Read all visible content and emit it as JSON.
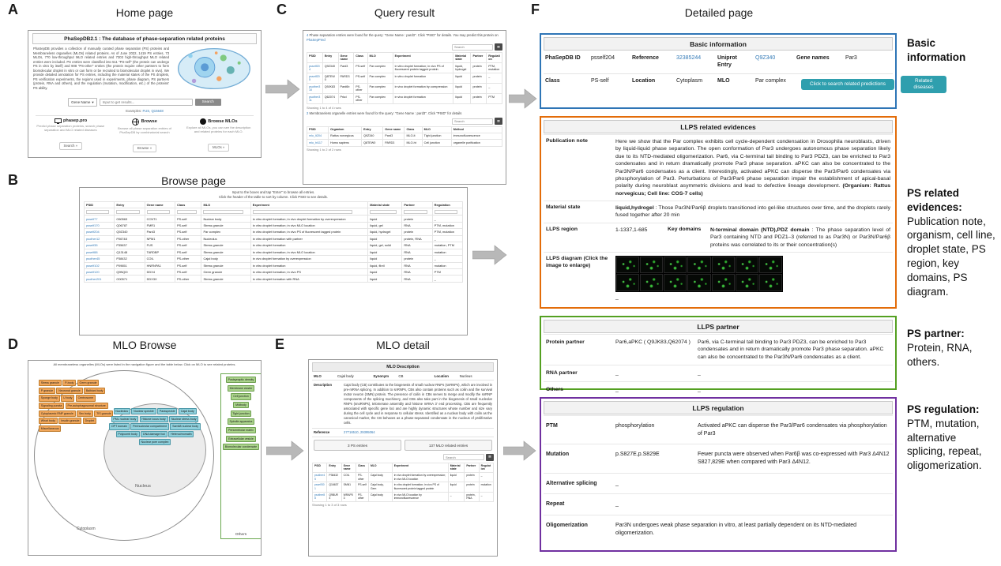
{
  "colors": {
    "accent_blue": "#2e75b6",
    "accent_orange": "#e36c09",
    "accent_green": "#54a021",
    "accent_purple": "#7030a0",
    "link": "#337ab7",
    "teal_button": "#2f9fae"
  },
  "panels": {
    "A": {
      "letter": "A",
      "title": "Home page"
    },
    "B": {
      "letter": "B",
      "title": "Browse page"
    },
    "C": {
      "letter": "C",
      "title": "Query result"
    },
    "D": {
      "letter": "D",
      "title": "MLO Browse"
    },
    "E": {
      "letter": "E",
      "title": "MLO detail"
    },
    "F": {
      "letter": "F",
      "title": "Detailed page"
    }
  },
  "home": {
    "site_title": "PhaSepDB2.1 : The database of phase-separation related proteins",
    "description": "PhaSepDB provides a collection of manually curated phase separation (PS) proteins and Membraneless organelles (MLOs) related proteins. As of June 2022, 1419 PS entries, 73 MLOs, 770 low-throughput MLO related entries and 7303 high-throughput MLO related entries were included. PS entries were classified into 511 \"PS-self\" (the protein can undergo PS in vitro by itself) and 908 \"PS-other\" entries (the protein require other partners to form biomolecular droplet in vitro or can form or be recruited to biomolecular droplet in vivo). We provide detailed annotation for PS entries, including the material states of the PS droplets, PS verification experiments, the regions used in experiments, phase diagram, PS partners (protein, RNA and others), and the regulation (mutation, modification, etc.) of the proteins' PS ability.",
    "search_category": "Gene Name",
    "search_placeholder": "Input to get results...",
    "search_button": "Search",
    "examples_label": "Examples:",
    "examples_links": "FUS, Q15648",
    "cards": [
      {
        "title": "phasep.pro",
        "desc": "Predict phase separation proteins, search phase separation and MLO related diseases",
        "button": "Search »"
      },
      {
        "title": "Browse",
        "desc": "Browse all phase separation entries of PhaSepDB by combinatorial search",
        "button": "Browse »"
      },
      {
        "title": "Browse MLOs",
        "desc": "Explore all MLOs, you can see the description and related proteins for each MLO.",
        "button": "MLOs »"
      }
    ]
  },
  "browse": {
    "instruction1": "Input to the boxes and tap \"Enter\" to browse all entries.",
    "instruction2": "Click the header of the table to sort by column. Click PSID to see details.",
    "columns": [
      "PSID",
      "Entry",
      "Gene name",
      "Class",
      "MLO",
      "Experiment",
      "Material state",
      "Partner",
      "Regulation"
    ],
    "rows": [
      [
        "psself77",
        "O60563",
        "CCNT1",
        "PS-self",
        "Nuclear body",
        "in vitro droplet formation; in vivo droplet formation by overexpression",
        "liquid",
        "protein",
        "_"
      ],
      [
        "psself170",
        "Q06787",
        "FMR1",
        "PS-self",
        "Stress granule",
        "in vitro droplet formation; in vivo MLO location",
        "liquid, gel",
        "RNA",
        "PTM, mutation"
      ],
      [
        "psself204",
        "Q9Z340",
        "Pard3",
        "PS-self",
        "Par complex",
        "in vitro droplet formation; in vivo PS of fluorescent tagged protein",
        "liquid, hydrogel",
        "protein",
        "PTM, mutation"
      ],
      [
        "psother12",
        "P06748",
        "NPM1",
        "PS-other",
        "Nucleolus",
        "in vitro droplet formation with partner",
        "liquid",
        "protein, RNA",
        "_"
      ],
      [
        "psself35",
        "P35637",
        "FUS",
        "PS-self",
        "Stress granule",
        "in vitro droplet formation",
        "liquid, gel, solid",
        "RNA",
        "mutation, PTM"
      ],
      [
        "psself88",
        "Q13148",
        "TARDBP",
        "PS-self",
        "Stress granule",
        "in vitro droplet formation; in vivo MLO location",
        "liquid",
        "RNA",
        "mutation"
      ],
      [
        "psother45",
        "P38432",
        "COIL",
        "PS-other",
        "Cajal body",
        "in vivo droplet formation by overexpression",
        "liquid",
        "protein",
        "_"
      ],
      [
        "psself102",
        "P09651",
        "HNRNPA1",
        "PS-self",
        "Stress granule",
        "in vitro droplet formation",
        "liquid, fibril",
        "RNA",
        "mutation"
      ],
      [
        "psself120",
        "Q9NQI0",
        "DDX4",
        "PS-self",
        "Germ granule",
        "in vitro droplet formation; in vivo PS",
        "liquid",
        "RNA",
        "PTM"
      ],
      [
        "psother201",
        "O00571",
        "DDX3X",
        "PS-other",
        "Stress granule",
        "in vitro droplet formation with RNA",
        "liquid",
        "RNA",
        "_"
      ]
    ]
  },
  "query": {
    "caption1_count": "4",
    "caption1": " Phase separation entries were found for the query: \"Gene Name : pard3\". Click \"PSID\" for details. You may predict this protein on ",
    "caption1_link": "PhaSepPred",
    "search_placeholder": "Search",
    "columns": [
      "PSID",
      "Entry",
      "Gene name",
      "Class",
      "MLO",
      "Experiment",
      "Material state",
      "Partner",
      "Regulation"
    ],
    "rows1": [
      [
        "psself204",
        "Q9Z340",
        "Pard3",
        "PS-self",
        "Par complex",
        "in vitro droplet formation; in vivo PS of fluorescent protein tagged protein",
        "liquid, hydrogel",
        "protein",
        "PTM, mutation"
      ],
      [
        "psself205",
        "Q8TEW0",
        "PARD3",
        "PS-self",
        "Par complex",
        "in vitro droplet formation",
        "liquid",
        "protein",
        "_"
      ],
      [
        "psother310",
        "Q9JK83",
        "Pard6b",
        "PS-other",
        "Par complex",
        "in vivo droplet formation by coexpression",
        "liquid",
        "protein",
        "_"
      ],
      [
        "psother311",
        "Q62074",
        "Prkci",
        "PS-other",
        "Par complex",
        "in vivo droplet formation",
        "liquid",
        "protein",
        "PTM"
      ]
    ],
    "showing1": "Showing 1 to 4 of 4 rows",
    "caption2_count": "2",
    "caption2": " Membraneless organelle entries were found for the query: \"Gene Name : pard3\". Click \"PSID\" for details",
    "columns2": [
      "PSID",
      "Organism",
      "Entry",
      "Gene name",
      "Class",
      "MLO",
      "Method"
    ],
    "rows2": [
      [
        "mlo_lt204",
        "Rattus norvegicus",
        "Q9Z340",
        "Pard3",
        "MLO-lt",
        "Tight junction",
        "immunofluorescence"
      ],
      [
        "mlo_ht117",
        "Homo sapiens",
        "Q8TEW0",
        "PARD3",
        "MLO-ht",
        "Cell junction",
        "organelle purification"
      ]
    ],
    "showing2": "Showing 1 to 2 of 2 rows"
  },
  "mlo_browse": {
    "caption": "All membraneless organelles (MLOs) were listed in the navigation figure and the table below. Click on MLO to see related proteins.",
    "nucleus_label": "Nucleus",
    "cytoplasm_label": "Cytoplasm",
    "others_label": "Others",
    "cytoplasm_mlos": [
      "Stress granule",
      "P-body",
      "Germ granule",
      "P granule",
      "Neuronal granule",
      "Balbiani body",
      "Sponge body",
      "U body",
      "Centrosome",
      "Signaling puncta",
      "Pre-autophagosomal structure",
      "Cytoplasmic RNP granule",
      "Sec body",
      "TIS granule",
      "Whorl body",
      "Insulin granule",
      "Droplet",
      "Miscellaneous"
    ],
    "nucleus_mlos": [
      "Nucleolus",
      "Nuclear speckle",
      "Paraspeckle",
      "Cajal body",
      "PML nuclear body",
      "Histone locus body",
      "Nuclear stress body",
      "OPT domain",
      "Perinucleolar compartment",
      "Sam68 nuclear body",
      "Polycomb body",
      "DNA damage foci",
      "Heterochromatin",
      "Nuclear pore complex"
    ],
    "other_mlos": [
      "Postsynaptic density",
      "Membrane cluster",
      "Cell junction",
      "Midbody",
      "Tight junction",
      "Spindle apparatus",
      "Pericentriolar matrix",
      "Extracellular vesicle",
      "Biomolecular condensate"
    ]
  },
  "mlo_detail": {
    "header": "MLO Description",
    "mlo_label": "MLO",
    "mlo": "Cajal body",
    "synonym_label": "Synonym",
    "synonym": "CB",
    "location_label": "Location",
    "location": "Nucleus",
    "description_label": "Description",
    "description": "Cajal body (CB) contributes to the biogenesis of small nuclear RNPs (snRNPs), which are involved in pre-mRNA splicing. In addition to snRNPs, CBs also contain proteins such as coilin and the survival motor neuron (SMN) protein. The presence of coilin in CBs serves to merge and modify the snRNP components of the splicing machinery, and CBs also take part in the biogenesis of small nucleolar RNPs (snoRNPs), telomerase assembly and histone mRNA 3' end processing. CBs are frequently associated with specific gene loci and are highly dynamic structures whose number and size vary during the cell cycle and in response to cellular stress. Identified as a nuclear body with coilin as the canonical marker, the CB behaves as a phase-separated condensate in the nucleus of proliferative cells.",
    "reference_label": "Reference",
    "reference": "27716510, 29395064",
    "button1": "3 PS entries",
    "button2": "137 MLO related entries",
    "search_placeholder": "Search",
    "columns": [
      "PSID",
      "Entry",
      "Gene name",
      "Class",
      "MLO",
      "Experiment",
      "Material state",
      "Partner",
      "Regulation"
    ],
    "rows": [
      [
        "psother45",
        "P38432",
        "COIL",
        "PS-other",
        "Cajal body",
        "in vivo droplet formation by overexpression; in vivo MLO location",
        "liquid",
        "protein",
        "_"
      ],
      [
        "psself301",
        "Q16637",
        "SMN1",
        "PS-self",
        "Cajal body, Gem",
        "in vitro droplet formation; in vivo PS of fluorescent protein tagged protein",
        "liquid",
        "protein",
        "mutation"
      ],
      [
        "psother88",
        "Q9BUR4",
        "WRAP53",
        "PS-other",
        "Cajal body",
        "in vivo MLO location by immunofluorescence",
        "_",
        "protein, RNA",
        "_"
      ]
    ],
    "showing": "Showing 1 to 3 of 3 rows"
  },
  "detail": {
    "basic": {
      "header": "Basic information",
      "id_label": "PhaSepDB ID",
      "id": "psself204",
      "ref_label": "Reference",
      "ref": "32385244",
      "uniprot_label": "Uniprot Entry",
      "uniprot": "Q9Z340",
      "gene_label": "Gene names",
      "gene": "Par3",
      "class_label": "Class",
      "class": "PS-self",
      "location_label": "Location",
      "location": "Cytoplasm",
      "mlo_label": "MLO",
      "mlo": "Par complex",
      "predict_button": "Click to search related predictions",
      "disease_button": "Related diseases"
    },
    "evidences": {
      "header": "LLPS related evidences",
      "pub_label": "Publication note",
      "pub_text": "Here we show that the Par complex exhibits cell cycle-dependent condensation in Drosophila neuroblasts, driven by liquid-liquid phase separation. The open conformation of Par3 undergoes autonomous phase separation likely due to its NTD-mediated oligomerization. Par6, via C-terminal tail binding to Par3 PDZ3, can be enriched to Par3 condensates and in return dramatically promote Par3 phase separation. aPKC can also be concentrated to the Par3N/Par6 condensates as a client. Interestingly, activated aPKC can disperse the Par3/Par6 condensates via phosphorylation of Par3. Perturbations of Par3/Par6 phase separation impair the establishment of apical-basal polarity during neuroblast asymmetric divisions and lead to defective lineage development.",
      "pub_bold": "(Organism: Rattus norvegicus; Cell line: COS-7 cells)",
      "material_label": "Material state",
      "material_value": "liquid,hydrogel",
      "material_note": " : Those Par3N/Par6β droplets transitioned into gel-like structures over time, and the droplets rarely fused together after 20 min",
      "region_label": "LLPS region",
      "region_value": "1-1337,1-685",
      "domains_label": "Key domains",
      "domains_value": "N-terminal domain (NTD),PDZ domain",
      "domains_note": " : The phase separation level of Par3 containing NTD and PDZ1–3 (referred to as Par3N) or Par3N/Par6β proteins was correlated to its or their concentration(s)",
      "diagram_label": "LLPS diagram (Click the image to enlarge)",
      "diagram_caption": "_"
    },
    "partner": {
      "header": "LLPS partner",
      "rows": [
        {
          "label": "Protein partner",
          "value": "Par6,aPKC ( Q9JK83,Q62074 )",
          "note": "Par6, via C-terminal tail binding to Par3 PDZ3, can be enriched to Par3 condensates and in return dramatically promote Par3 phase separation. aPKC can also be concentrated to the Par3N/Par6 condensates as a client."
        },
        {
          "label": "RNA partner",
          "value": "_",
          "note": "_"
        },
        {
          "label": "Others",
          "value": "_",
          "note": "_"
        }
      ]
    },
    "regulation": {
      "header": "LLPS regulation",
      "rows": [
        {
          "label": "PTM",
          "value": "phosphorylation",
          "note": "Activated aPKC can disperse the Par3/Par6 condensates via phosphorylation of Par3"
        },
        {
          "label": "Mutation",
          "value": "p.S827E,p.S829E",
          "note": "Fewer puncta were observed when Par6β was co-expressed with Par3 Δ4N12 S827,829E when compared with Par3 Δ4N12."
        },
        {
          "label": "Alternative splicing",
          "value": "_",
          "note": ""
        },
        {
          "label": "Repeat",
          "value": "_",
          "note": ""
        },
        {
          "label": "Oligomerization",
          "value": "Par3N undergoes weak phase separation in vitro, at least partially dependent on its NTD-mediated oligomerization.",
          "note": ""
        }
      ]
    }
  },
  "side_notes": [
    {
      "title": "Basic information",
      "body": ""
    },
    {
      "title": "PS related evidences:",
      "body": "Publication note, organism, cell line, droplet state, PS region, key domains, PS diagram."
    },
    {
      "title": "PS partner:",
      "body": "Protein, RNA, others."
    },
    {
      "title": "PS regulation:",
      "body": "PTM, mutation, alternative splicing, repeat, oligomerization."
    }
  ]
}
